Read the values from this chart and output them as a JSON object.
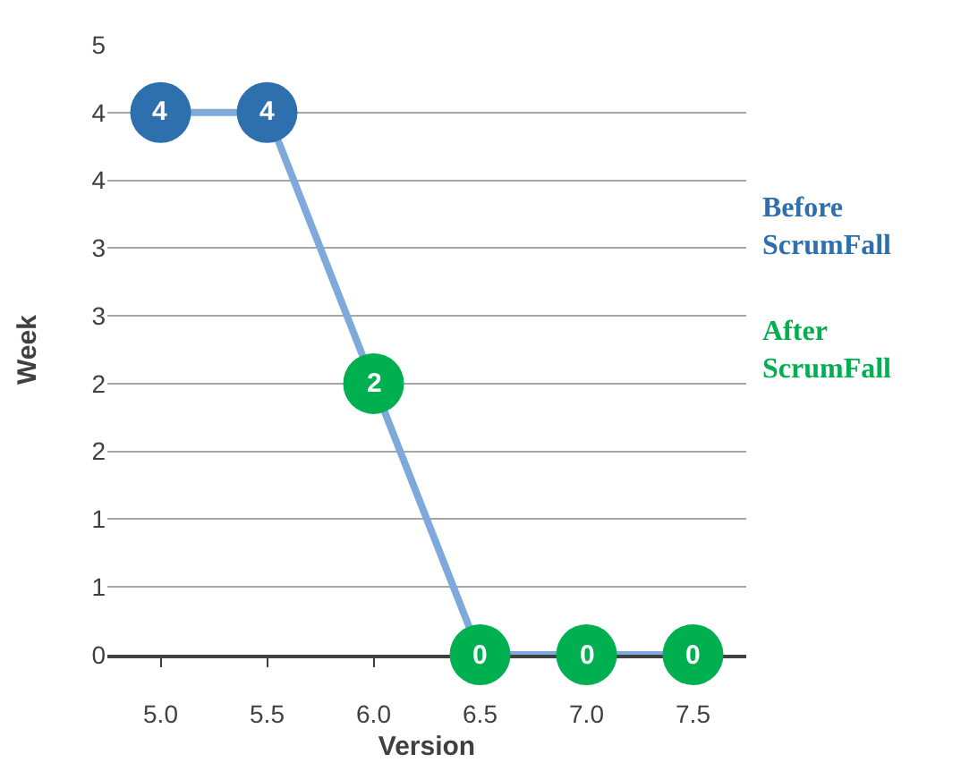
{
  "chart_data": {
    "type": "line",
    "xlabel": "Version",
    "ylabel": "Week",
    "categories": [
      "5.0",
      "5.5",
      "6.0",
      "6.5",
      "7.0",
      "7.5"
    ],
    "series": [
      {
        "color": "#7eaadb",
        "values": [
          4,
          4,
          2,
          0,
          0,
          0
        ],
        "marker": "none"
      },
      {
        "type": "scatter",
        "name": "Before ScrumFall",
        "color": "#2e6fad",
        "values": [
          4,
          4,
          null,
          null,
          null,
          null
        ],
        "value_labels": [
          "4",
          "4",
          null,
          null,
          null,
          null
        ],
        "marker": "circle"
      },
      {
        "type": "scatter",
        "name": "After ScrumFall",
        "color": "#00b050",
        "values": [
          null,
          null,
          2,
          0,
          0,
          0
        ],
        "value_labels": [
          null,
          null,
          "2",
          "0",
          "0",
          "0"
        ],
        "marker": "circle"
      }
    ],
    "ylim": [
      0,
      4.5
    ],
    "yticks": [
      0,
      {
        "value": 0.5,
        "label": "1"
      },
      1,
      {
        "value": 1.5,
        "label": "2"
      },
      2,
      {
        "value": 2.5,
        "label": "3"
      },
      3,
      {
        "value": 3.5,
        "label": "4"
      },
      4,
      {
        "value": 4.5,
        "label": "5"
      }
    ],
    "grid": "y",
    "legend": "right"
  }
}
